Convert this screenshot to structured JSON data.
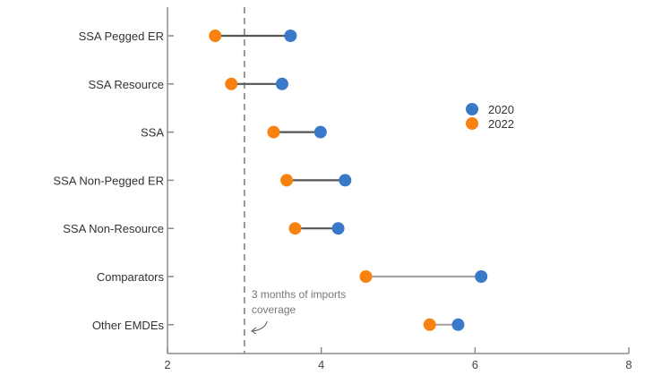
{
  "chart_data": {
    "type": "dumbbell",
    "categories": [
      "SSA Pegged ER",
      "SSA Resource",
      "SSA",
      "SSA Non-Pegged ER",
      "SSA Non-Resource",
      "Comparators",
      "Other EMDEs"
    ],
    "series": [
      {
        "name": "2020",
        "color": "#3A78C9",
        "values": [
          3.6,
          3.49,
          3.99,
          4.31,
          4.22,
          6.08,
          5.78
        ]
      },
      {
        "name": "2022",
        "color": "#F7820F",
        "values": [
          2.62,
          2.83,
          3.38,
          3.55,
          3.66,
          4.58,
          5.41
        ]
      }
    ],
    "connector_colors": [
      "#555555",
      "#555555",
      "#555555",
      "#555555",
      "#555555",
      "#A6A6A6",
      "#A6A6A6"
    ],
    "xlim": [
      2,
      8
    ],
    "xticks": [
      "2",
      "4",
      "6",
      "8"
    ],
    "xlabel": "",
    "ylabel": "",
    "legend_position": "right",
    "reference_line": {
      "x": 3,
      "style": "dashed",
      "label_lines": [
        "3 months of imports",
        "coverage"
      ]
    },
    "grid": false
  }
}
